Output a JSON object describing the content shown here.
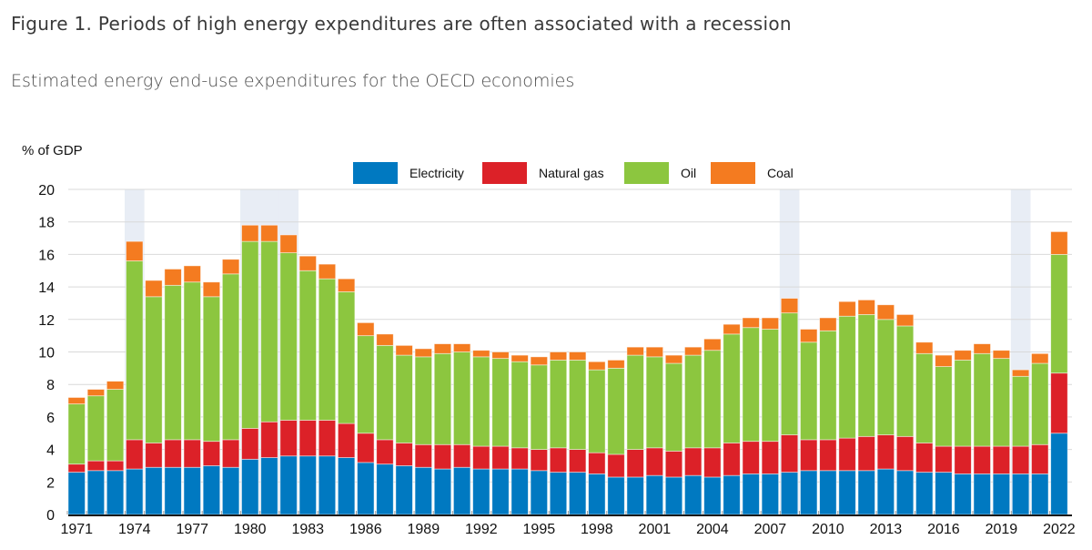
{
  "header": {
    "title": "Figure 1. Periods of high energy expenditures are often associated with a recession",
    "subtitle": "Estimated energy end-use expenditures for the OECD economies"
  },
  "chart_data": {
    "type": "bar",
    "stacked": true,
    "title": "Estimated energy end-use expenditures for the OECD economies",
    "ylabel": "% of GDP",
    "xlabel": "",
    "ylim": [
      0,
      20
    ],
    "yticks": [
      0,
      2,
      4,
      6,
      8,
      10,
      12,
      14,
      16,
      18,
      20
    ],
    "grid": true,
    "legend_position": "top-center",
    "x_tick_labels": [
      "1971",
      "1974",
      "1977",
      "1980",
      "1983",
      "1986",
      "1989",
      "1992",
      "1995",
      "1998",
      "2001",
      "2004",
      "2007",
      "2010",
      "2013",
      "2016",
      "2019",
      "2022"
    ],
    "categories": [
      "1971",
      "1972",
      "1973",
      "1974",
      "1975",
      "1976",
      "1977",
      "1978",
      "1979",
      "1980",
      "1981",
      "1982",
      "1983",
      "1984",
      "1985",
      "1986",
      "1987",
      "1988",
      "1989",
      "1990",
      "1991",
      "1992",
      "1993",
      "1994",
      "1995",
      "1996",
      "1997",
      "1998",
      "1999",
      "2000",
      "2001",
      "2002",
      "2003",
      "2004",
      "2005",
      "2006",
      "2007",
      "2008",
      "2009",
      "2010",
      "2011",
      "2012",
      "2013",
      "2014",
      "2015",
      "2016",
      "2017",
      "2018",
      "2019",
      "2020",
      "2021",
      "2022"
    ],
    "recession_years": [
      "1974",
      "1980",
      "1981",
      "1982",
      "2008",
      "2020"
    ],
    "series": [
      {
        "name": "Electricity",
        "color": "#0079c1",
        "values": [
          2.6,
          2.7,
          2.7,
          2.8,
          2.9,
          2.9,
          2.9,
          3.0,
          2.9,
          3.4,
          3.5,
          3.6,
          3.6,
          3.6,
          3.5,
          3.2,
          3.1,
          3.0,
          2.9,
          2.8,
          2.9,
          2.8,
          2.8,
          2.8,
          2.7,
          2.6,
          2.6,
          2.5,
          2.3,
          2.3,
          2.4,
          2.3,
          2.4,
          2.3,
          2.4,
          2.5,
          2.5,
          2.6,
          2.7,
          2.7,
          2.7,
          2.7,
          2.8,
          2.7,
          2.6,
          2.6,
          2.5,
          2.5,
          2.5,
          2.5,
          2.5,
          5.0
        ]
      },
      {
        "name": "Natural gas",
        "color": "#dc2128",
        "values": [
          0.5,
          0.6,
          0.6,
          1.8,
          1.5,
          1.7,
          1.7,
          1.5,
          1.7,
          1.9,
          2.2,
          2.2,
          2.2,
          2.2,
          2.1,
          1.8,
          1.5,
          1.4,
          1.4,
          1.5,
          1.4,
          1.4,
          1.4,
          1.3,
          1.3,
          1.5,
          1.4,
          1.3,
          1.4,
          1.7,
          1.7,
          1.6,
          1.7,
          1.8,
          2.0,
          2.0,
          2.0,
          2.3,
          1.9,
          1.9,
          2.0,
          2.1,
          2.1,
          2.1,
          1.8,
          1.6,
          1.7,
          1.7,
          1.7,
          1.7,
          1.8,
          3.7
        ]
      },
      {
        "name": "Oil",
        "color": "#8cc63f",
        "values": [
          3.7,
          4.0,
          4.4,
          11.0,
          9.0,
          9.5,
          9.7,
          8.9,
          10.2,
          11.5,
          11.1,
          10.3,
          9.2,
          8.7,
          8.1,
          6.0,
          5.8,
          5.4,
          5.4,
          5.6,
          5.7,
          5.5,
          5.4,
          5.3,
          5.2,
          5.4,
          5.5,
          5.1,
          5.3,
          5.8,
          5.6,
          5.4,
          5.7,
          6.0,
          6.7,
          7.0,
          6.9,
          7.5,
          6.0,
          6.7,
          7.5,
          7.5,
          7.1,
          6.8,
          5.5,
          4.9,
          5.3,
          5.7,
          5.4,
          4.3,
          5.0,
          7.3
        ]
      },
      {
        "name": "Coal",
        "color": "#f47b20",
        "values": [
          0.4,
          0.4,
          0.5,
          1.2,
          1.0,
          1.0,
          1.0,
          0.9,
          0.9,
          1.0,
          1.0,
          1.1,
          0.9,
          0.9,
          0.8,
          0.8,
          0.7,
          0.6,
          0.5,
          0.6,
          0.5,
          0.4,
          0.4,
          0.4,
          0.5,
          0.5,
          0.5,
          0.5,
          0.5,
          0.5,
          0.6,
          0.5,
          0.5,
          0.7,
          0.6,
          0.6,
          0.7,
          0.9,
          0.8,
          0.8,
          0.9,
          0.9,
          0.9,
          0.7,
          0.7,
          0.7,
          0.6,
          0.6,
          0.5,
          0.4,
          0.6,
          1.4
        ]
      }
    ]
  }
}
